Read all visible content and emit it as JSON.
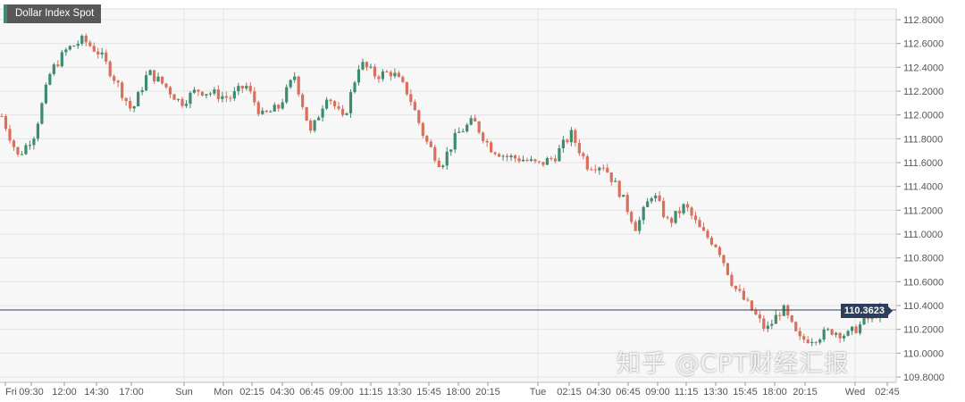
{
  "chart_data": {
    "type": "candlestick",
    "title": "Dollar Index Spot",
    "ylim": [
      109.8,
      112.8
    ],
    "y_ticks": [
      "112.8000",
      "112.6000",
      "112.4000",
      "112.2000",
      "112.0000",
      "111.8000",
      "111.6000",
      "111.4000",
      "111.2000",
      "111.0000",
      "110.8000",
      "110.6000",
      "110.4000",
      "110.2000",
      "110.0000",
      "109.8000"
    ],
    "x_ticks": [
      "Fri",
      "09:30",
      "12:00",
      "14:30",
      "17:00",
      "Sun",
      "Mon",
      "02:15",
      "04:30",
      "06:45",
      "09:00",
      "11:15",
      "13:30",
      "15:45",
      "18:00",
      "20:15",
      "Tue",
      "02:15",
      "04:30",
      "06:45",
      "09:00",
      "11:15",
      "13:30",
      "15:45",
      "18:00",
      "20:15",
      "Wed",
      "02:45"
    ],
    "grid": true,
    "last_price": "110.3623",
    "approx_closes": [
      111.99,
      111.65,
      111.84,
      112.36,
      112.55,
      112.63,
      112.52,
      112.29,
      112.03,
      112.36,
      112.25,
      112.1,
      112.21,
      112.18,
      112.14,
      112.25,
      111.99,
      112.06,
      112.33,
      111.84,
      112.18,
      111.95,
      112.44,
      112.33,
      112.36,
      112.18,
      111.8,
      111.58,
      111.84,
      111.95,
      111.73,
      111.65,
      111.63,
      111.58,
      111.65,
      111.84,
      111.58,
      111.58,
      111.35,
      111.05,
      111.35,
      111.09,
      111.24,
      111.02,
      110.9,
      110.56,
      110.38,
      110.19,
      110.38,
      110.11,
      110.13,
      110.19,
      110.15,
      110.26,
      110.36
    ],
    "colors": {
      "up": "#3d8c6e",
      "down": "#d9705c",
      "last_line": "#2b3f5c"
    }
  },
  "watermark": "知乎 @CPT财经汇报"
}
